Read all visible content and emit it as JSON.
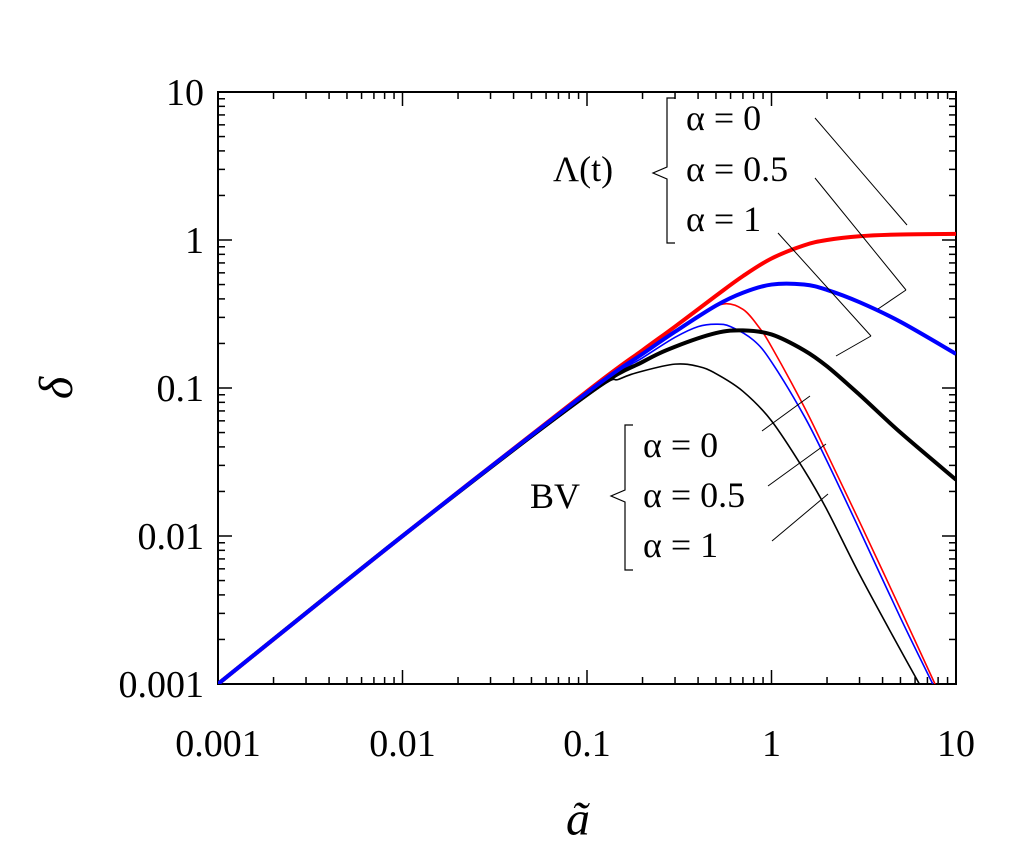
{
  "chart_data": {
    "type": "line",
    "xscale": "log",
    "yscale": "log",
    "xlim": [
      0.001,
      10
    ],
    "ylim": [
      0.001,
      10
    ],
    "xlabel": "ã",
    "ylabel": "δ",
    "x_ticks": [
      "0.001",
      "0.01",
      "0.1",
      "1",
      "10"
    ],
    "y_ticks": [
      "0.001",
      "0.01",
      "0.1",
      "1",
      "10"
    ],
    "grid": false,
    "colors": {
      "red": "#ff0000",
      "blue": "#0000ff",
      "black": "#000000"
    },
    "groups": [
      {
        "label_main": "Λ",
        "label_sub": "(t)",
        "alphas": [
          "α = 0",
          "α = 0.5",
          "α = 1"
        ]
      },
      {
        "label_main": "BV",
        "label_sub": "",
        "alphas": [
          "α = 0",
          "α = 0.5",
          "α = 1"
        ]
      }
    ],
    "series": [
      {
        "group": "Λ(t)",
        "alpha": "α = 0",
        "color": "#ff0000",
        "weight": "thick",
        "x": [
          0.001,
          0.01,
          0.1,
          0.2,
          0.3,
          0.5,
          0.7,
          1,
          1.5,
          2,
          3,
          5,
          10
        ],
        "y": [
          0.001,
          0.01,
          0.095,
          0.18,
          0.26,
          0.42,
          0.57,
          0.75,
          0.92,
          1.0,
          1.06,
          1.09,
          1.1
        ]
      },
      {
        "group": "Λ(t)",
        "alpha": "α = 0.5",
        "color": "#0000ff",
        "weight": "thick",
        "x": [
          0.001,
          0.01,
          0.1,
          0.2,
          0.3,
          0.5,
          0.7,
          1,
          1.5,
          2,
          3,
          5,
          10
        ],
        "y": [
          0.001,
          0.01,
          0.093,
          0.17,
          0.24,
          0.36,
          0.44,
          0.5,
          0.5,
          0.46,
          0.38,
          0.28,
          0.17
        ]
      },
      {
        "group": "Λ(t)",
        "alpha": "α = 1",
        "color": "#000000",
        "weight": "thick",
        "x": [
          0.001,
          0.01,
          0.1,
          0.2,
          0.3,
          0.5,
          0.7,
          1,
          1.5,
          2,
          3,
          5,
          10
        ],
        "y": [
          0.001,
          0.01,
          0.09,
          0.15,
          0.19,
          0.235,
          0.245,
          0.23,
          0.18,
          0.14,
          0.09,
          0.05,
          0.024
        ]
      },
      {
        "group": "BV",
        "alpha": "α = 0",
        "color": "#ff0000",
        "weight": "thin",
        "x": [
          0.001,
          0.01,
          0.1,
          0.2,
          0.3,
          0.4,
          0.55,
          0.7,
          0.85,
          1,
          1.5,
          2,
          3,
          5,
          8
        ],
        "y": [
          0.001,
          0.01,
          0.093,
          0.17,
          0.24,
          0.31,
          0.37,
          0.34,
          0.26,
          0.19,
          0.075,
          0.036,
          0.0125,
          0.0032,
          0.0009
        ]
      },
      {
        "group": "BV",
        "alpha": "α = 0.5",
        "color": "#0000ff",
        "weight": "thin",
        "x": [
          0.001,
          0.01,
          0.1,
          0.2,
          0.3,
          0.4,
          0.5,
          0.6,
          0.8,
          1,
          1.5,
          2,
          3,
          5,
          7.8
        ],
        "y": [
          0.001,
          0.01,
          0.092,
          0.16,
          0.22,
          0.26,
          0.27,
          0.26,
          0.21,
          0.15,
          0.065,
          0.032,
          0.011,
          0.0028,
          0.0009
        ]
      },
      {
        "group": "BV",
        "alpha": "α = 1",
        "color": "#000000",
        "weight": "thin",
        "x": [
          0.001,
          0.01,
          0.1,
          0.15,
          0.2,
          0.3,
          0.4,
          0.5,
          0.7,
          1,
          1.5,
          2,
          3,
          5,
          7
        ],
        "y": [
          0.001,
          0.01,
          0.088,
          0.115,
          0.13,
          0.145,
          0.14,
          0.125,
          0.095,
          0.06,
          0.028,
          0.015,
          0.0055,
          0.0017,
          0.0008
        ]
      }
    ]
  }
}
